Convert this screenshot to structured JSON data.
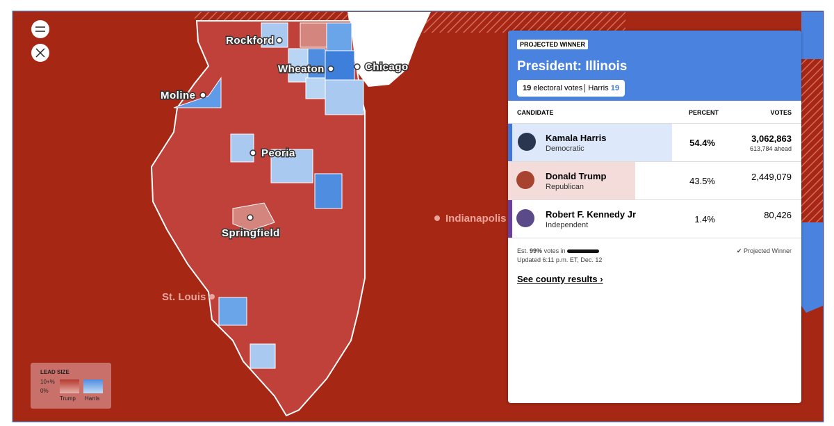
{
  "map": {
    "cities": [
      "Rockford",
      "Wheaton",
      "Chicago",
      "Moline",
      "Peoria",
      "Springfield"
    ],
    "other_cities": [
      "Indianapolis",
      "St. Louis"
    ],
    "legend": {
      "title": "LEAD SIZE",
      "high": "10+%",
      "low": "0%",
      "trump": "Trump",
      "harris": "Harris"
    }
  },
  "panel": {
    "badge": "PROJECTED WINNER",
    "title": "President: Illinois",
    "electoral_count": "19",
    "electoral_label": "electoral votes",
    "winner": "Harris",
    "winner_votes": "19",
    "headers": [
      "CANDIDATE",
      "PERCENT",
      "VOTES"
    ],
    "rows": [
      {
        "name": "Kamala Harris",
        "party": "Democratic",
        "percent": "54.4%",
        "votes": "3,062,863",
        "lead": "613,784 ahead"
      },
      {
        "name": "Donald Trump",
        "party": "Republican",
        "percent": "43.5%",
        "votes": "2,449,079"
      },
      {
        "name": "Robert F. Kennedy Jr",
        "party": "Independent",
        "percent": "1.4%",
        "votes": "80,426"
      }
    ],
    "est_prefix": "Est.",
    "est_value": "99%",
    "est_suffix": "votes in",
    "updated": "Updated 6:11 p.m. ET, Dec. 12",
    "projected": "Projected Winner",
    "link": "See county results"
  }
}
